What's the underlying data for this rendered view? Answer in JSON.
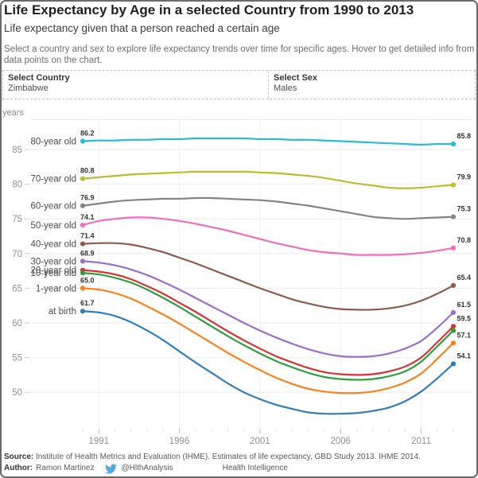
{
  "header": {
    "title": "Life Expectancy by Age in a selected Country from 1990 to 2013",
    "subtitle": "Life expectancy given that a person reached a certain age",
    "instructions": "Select a country and sex to explore life expectancy trends over time for specific ages. Hover to get detailed info from data points on the chart."
  },
  "filters": {
    "country": {
      "label": "Select Country",
      "value": "Zimbabwe"
    },
    "sex": {
      "label": "Select Sex",
      "value": "Males"
    }
  },
  "chart_data": {
    "type": "line",
    "title": "Life Expectancy by Age in a selected Country from 1990 to 2013",
    "xlabel": "",
    "ylabel": "years",
    "x": [
      1990,
      1991,
      1992,
      1993,
      1994,
      1995,
      1996,
      1997,
      1998,
      1999,
      2000,
      2001,
      2002,
      2003,
      2004,
      2005,
      2006,
      2007,
      2008,
      2009,
      2010,
      2011,
      2012,
      2013
    ],
    "x_ticks_labeled": [
      1991,
      1996,
      2001,
      2006,
      2011
    ],
    "y_ticks": [
      50,
      55,
      60,
      65,
      70,
      75,
      80,
      85
    ],
    "ylim": [
      46.5,
      87.5
    ],
    "grid": true,
    "legend_position": "left-of-lines",
    "series": [
      {
        "name": "80-year old",
        "color": "#26bdd3",
        "start_label": "86.2",
        "end_label": "85.8",
        "values": [
          86.2,
          86.3,
          86.3,
          86.4,
          86.4,
          86.5,
          86.5,
          86.6,
          86.6,
          86.6,
          86.6,
          86.5,
          86.5,
          86.4,
          86.4,
          86.3,
          86.2,
          86.1,
          86.0,
          85.9,
          85.8,
          85.7,
          85.8,
          85.8
        ]
      },
      {
        "name": "70-year old",
        "color": "#bcbd2f",
        "start_label": "80.8",
        "end_label": "79.9",
        "values": [
          80.8,
          81.0,
          81.2,
          81.4,
          81.5,
          81.6,
          81.7,
          81.8,
          81.8,
          81.8,
          81.8,
          81.7,
          81.6,
          81.4,
          81.2,
          80.9,
          80.5,
          80.1,
          79.8,
          79.5,
          79.4,
          79.5,
          79.7,
          79.9
        ]
      },
      {
        "name": "60-year old",
        "color": "#848484",
        "start_label": "76.9",
        "end_label": "75.3",
        "values": [
          76.9,
          77.2,
          77.5,
          77.7,
          77.8,
          77.9,
          77.9,
          78.0,
          78.0,
          77.9,
          77.8,
          77.7,
          77.5,
          77.2,
          76.9,
          76.5,
          76.1,
          75.7,
          75.3,
          75.1,
          75.0,
          75.1,
          75.2,
          75.3
        ]
      },
      {
        "name": "50-year old",
        "color": "#ef6ec1",
        "start_label": "74.1",
        "end_label": "70.8",
        "values": [
          74.1,
          74.7,
          75.0,
          75.2,
          75.2,
          75.0,
          74.7,
          74.3,
          73.8,
          73.3,
          72.7,
          72.1,
          71.5,
          71.0,
          70.5,
          70.2,
          70.0,
          69.8,
          69.8,
          69.8,
          69.9,
          70.1,
          70.4,
          70.8
        ]
      },
      {
        "name": "40-year old",
        "color": "#8f5b4d",
        "start_label": "71.4",
        "end_label": "65.4",
        "values": [
          71.4,
          71.5,
          71.5,
          71.3,
          70.8,
          70.2,
          69.4,
          68.6,
          67.7,
          66.8,
          65.9,
          65.0,
          64.2,
          63.4,
          62.8,
          62.3,
          62.0,
          61.9,
          61.9,
          62.1,
          62.5,
          63.2,
          64.2,
          65.4
        ]
      },
      {
        "name": "30-year old",
        "color": "#9a6fc9",
        "start_label": "68.9",
        "end_label": "61.5",
        "values": [
          68.9,
          68.7,
          68.3,
          67.7,
          66.9,
          65.9,
          64.8,
          63.6,
          62.4,
          61.2,
          60.0,
          58.9,
          57.9,
          57.0,
          56.2,
          55.6,
          55.2,
          55.1,
          55.2,
          55.6,
          56.3,
          57.4,
          59.3,
          61.5
        ]
      },
      {
        "name": "20-year old",
        "color": "#d63434",
        "start_label": null,
        "end_label": "59.5",
        "values": [
          67.6,
          67.4,
          67.0,
          66.3,
          65.3,
          64.2,
          62.9,
          61.6,
          60.2,
          58.8,
          57.5,
          56.3,
          55.2,
          54.3,
          53.5,
          52.9,
          52.6,
          52.5,
          52.6,
          53.0,
          53.7,
          55.0,
          57.2,
          59.5
        ]
      },
      {
        "name": "10-year old",
        "color": "#2ca03c",
        "start_label": null,
        "end_label": null,
        "values": [
          67.2,
          67.0,
          66.5,
          65.8,
          64.8,
          63.6,
          62.3,
          60.9,
          59.5,
          58.1,
          56.8,
          55.6,
          54.5,
          53.6,
          52.8,
          52.2,
          51.9,
          51.8,
          51.9,
          52.3,
          53.0,
          54.4,
          56.6,
          58.9
        ]
      },
      {
        "name": "1-year old",
        "color": "#ff8019",
        "start_label": "65.0",
        "end_label": "57.1",
        "values": [
          65.0,
          64.8,
          64.3,
          63.5,
          62.4,
          61.2,
          59.9,
          58.5,
          57.1,
          55.7,
          54.4,
          53.2,
          52.1,
          51.2,
          50.5,
          50.1,
          49.9,
          49.9,
          50.1,
          50.6,
          51.4,
          52.7,
          54.8,
          57.1
        ]
      },
      {
        "name": "at birth",
        "color": "#2e7ebc",
        "start_label": "61.7",
        "end_label": "54.1",
        "values": [
          61.7,
          61.5,
          61.0,
          60.1,
          58.9,
          57.5,
          55.9,
          54.3,
          52.8,
          51.3,
          50.0,
          49.0,
          48.2,
          47.6,
          47.1,
          46.9,
          46.9,
          47.0,
          47.3,
          47.8,
          48.7,
          50.1,
          52.0,
          54.1
        ]
      }
    ]
  },
  "footer": {
    "source_label": "Source:",
    "source_text": "Institute of Health Metrics and Evaluation (IHME). Estimates of life expectancy, GBD Study 2013. IHME 2014.",
    "author_label": "Author:",
    "author_name": "Ramon Martinez",
    "twitter_handle": "@HlthAnalysis",
    "site_name": "Health Intelligence",
    "twitter_icon_color": "#56ace0"
  },
  "colors": {
    "gridline": "#eeeeee",
    "tick_label": "#919191",
    "value_label": "#333333",
    "category_label": "#4a4a4a"
  }
}
